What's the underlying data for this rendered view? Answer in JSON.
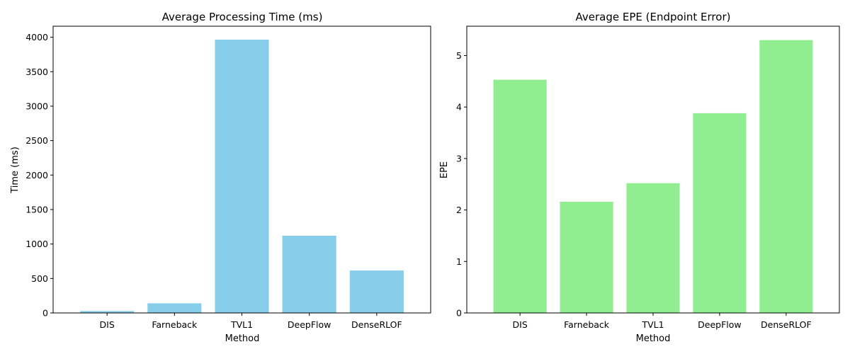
{
  "chart_data": [
    {
      "type": "bar",
      "title": "Average Processing Time (ms)",
      "xlabel": "Method",
      "ylabel": "Time (ms)",
      "categories": [
        "DIS",
        "Farneback",
        "TVL1",
        "DeepFlow",
        "DenseRLOF"
      ],
      "values": [
        28,
        140,
        3965,
        1120,
        615
      ],
      "ylim": [
        0,
        4160
      ],
      "yticks": [
        0,
        500,
        1000,
        1500,
        2000,
        2500,
        3000,
        3500,
        4000
      ],
      "bar_color": "#87ceeb",
      "grid": false
    },
    {
      "type": "bar",
      "title": "Average EPE (Endpoint Error)",
      "xlabel": "Method",
      "ylabel": "EPE",
      "categories": [
        "DIS",
        "Farneback",
        "TVL1",
        "DeepFlow",
        "DenseRLOF"
      ],
      "values": [
        4.53,
        2.16,
        2.52,
        3.88,
        5.3
      ],
      "ylim": [
        0,
        5.57
      ],
      "yticks": [
        0,
        1,
        2,
        3,
        4,
        5
      ],
      "bar_color": "#90ee90",
      "grid": false
    }
  ]
}
